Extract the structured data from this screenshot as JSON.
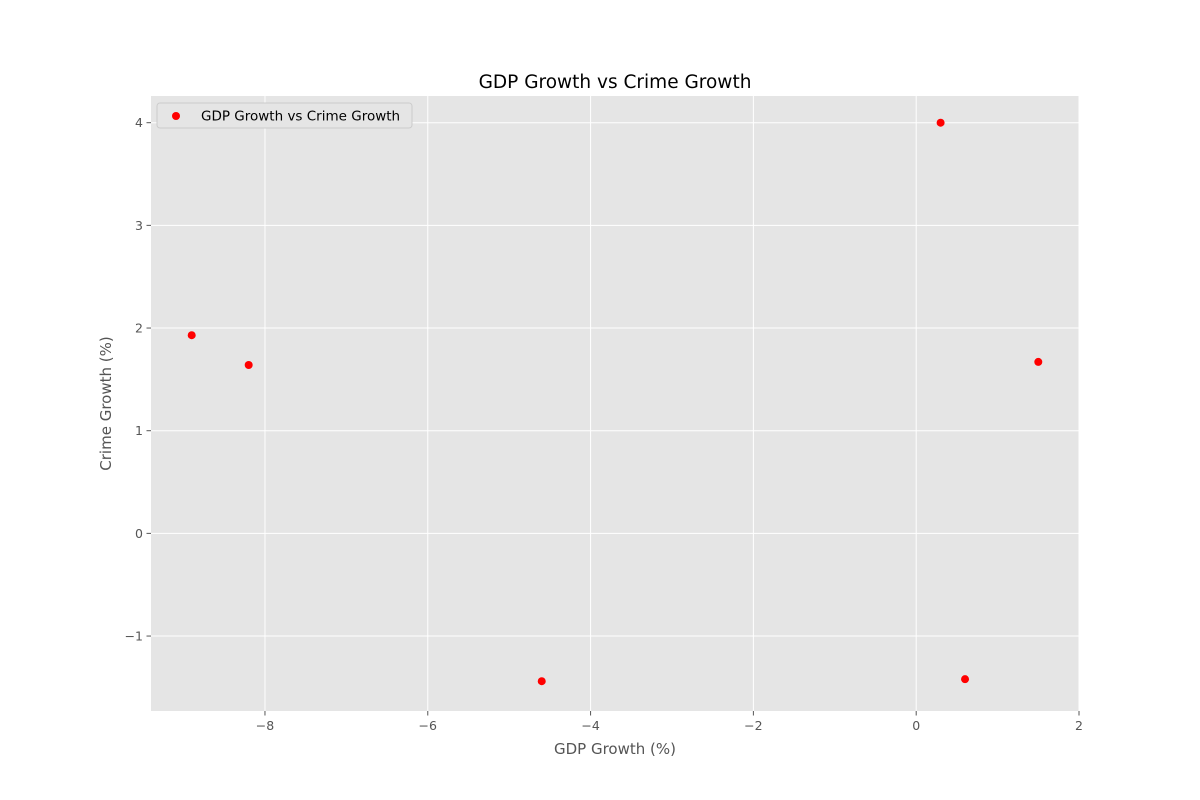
{
  "chart_data": {
    "type": "scatter",
    "title": "GDP Growth vs Crime Growth",
    "xlabel": "GDP Growth (%)",
    "ylabel": "Crime Growth (%)",
    "xlim": [
      -9.4,
      2.0
    ],
    "ylim": [
      -1.73,
      4.26
    ],
    "grid": true,
    "legend_position": "top-left",
    "x_ticks": [
      -8,
      -6,
      -4,
      -2,
      0,
      2
    ],
    "x_tick_labels": [
      "−8",
      "−6",
      "−4",
      "−2",
      "0",
      "2"
    ],
    "y_ticks": [
      -1,
      0,
      1,
      2,
      3,
      4
    ],
    "y_tick_labels": [
      "−1",
      "0",
      "1",
      "2",
      "3",
      "4"
    ],
    "series": [
      {
        "name": "GDP Growth vs Crime Growth",
        "color": "#ff0000",
        "points": [
          {
            "x": -8.9,
            "y": 1.93
          },
          {
            "x": -8.2,
            "y": 1.64
          },
          {
            "x": -4.6,
            "y": -1.44
          },
          {
            "x": 0.3,
            "y": 4.0
          },
          {
            "x": 0.6,
            "y": -1.42
          },
          {
            "x": 1.5,
            "y": 1.67
          }
        ]
      }
    ],
    "colors": {
      "plot_background": "#e5e5e5",
      "grid": "#ffffff",
      "tick_text": "#555555"
    }
  }
}
